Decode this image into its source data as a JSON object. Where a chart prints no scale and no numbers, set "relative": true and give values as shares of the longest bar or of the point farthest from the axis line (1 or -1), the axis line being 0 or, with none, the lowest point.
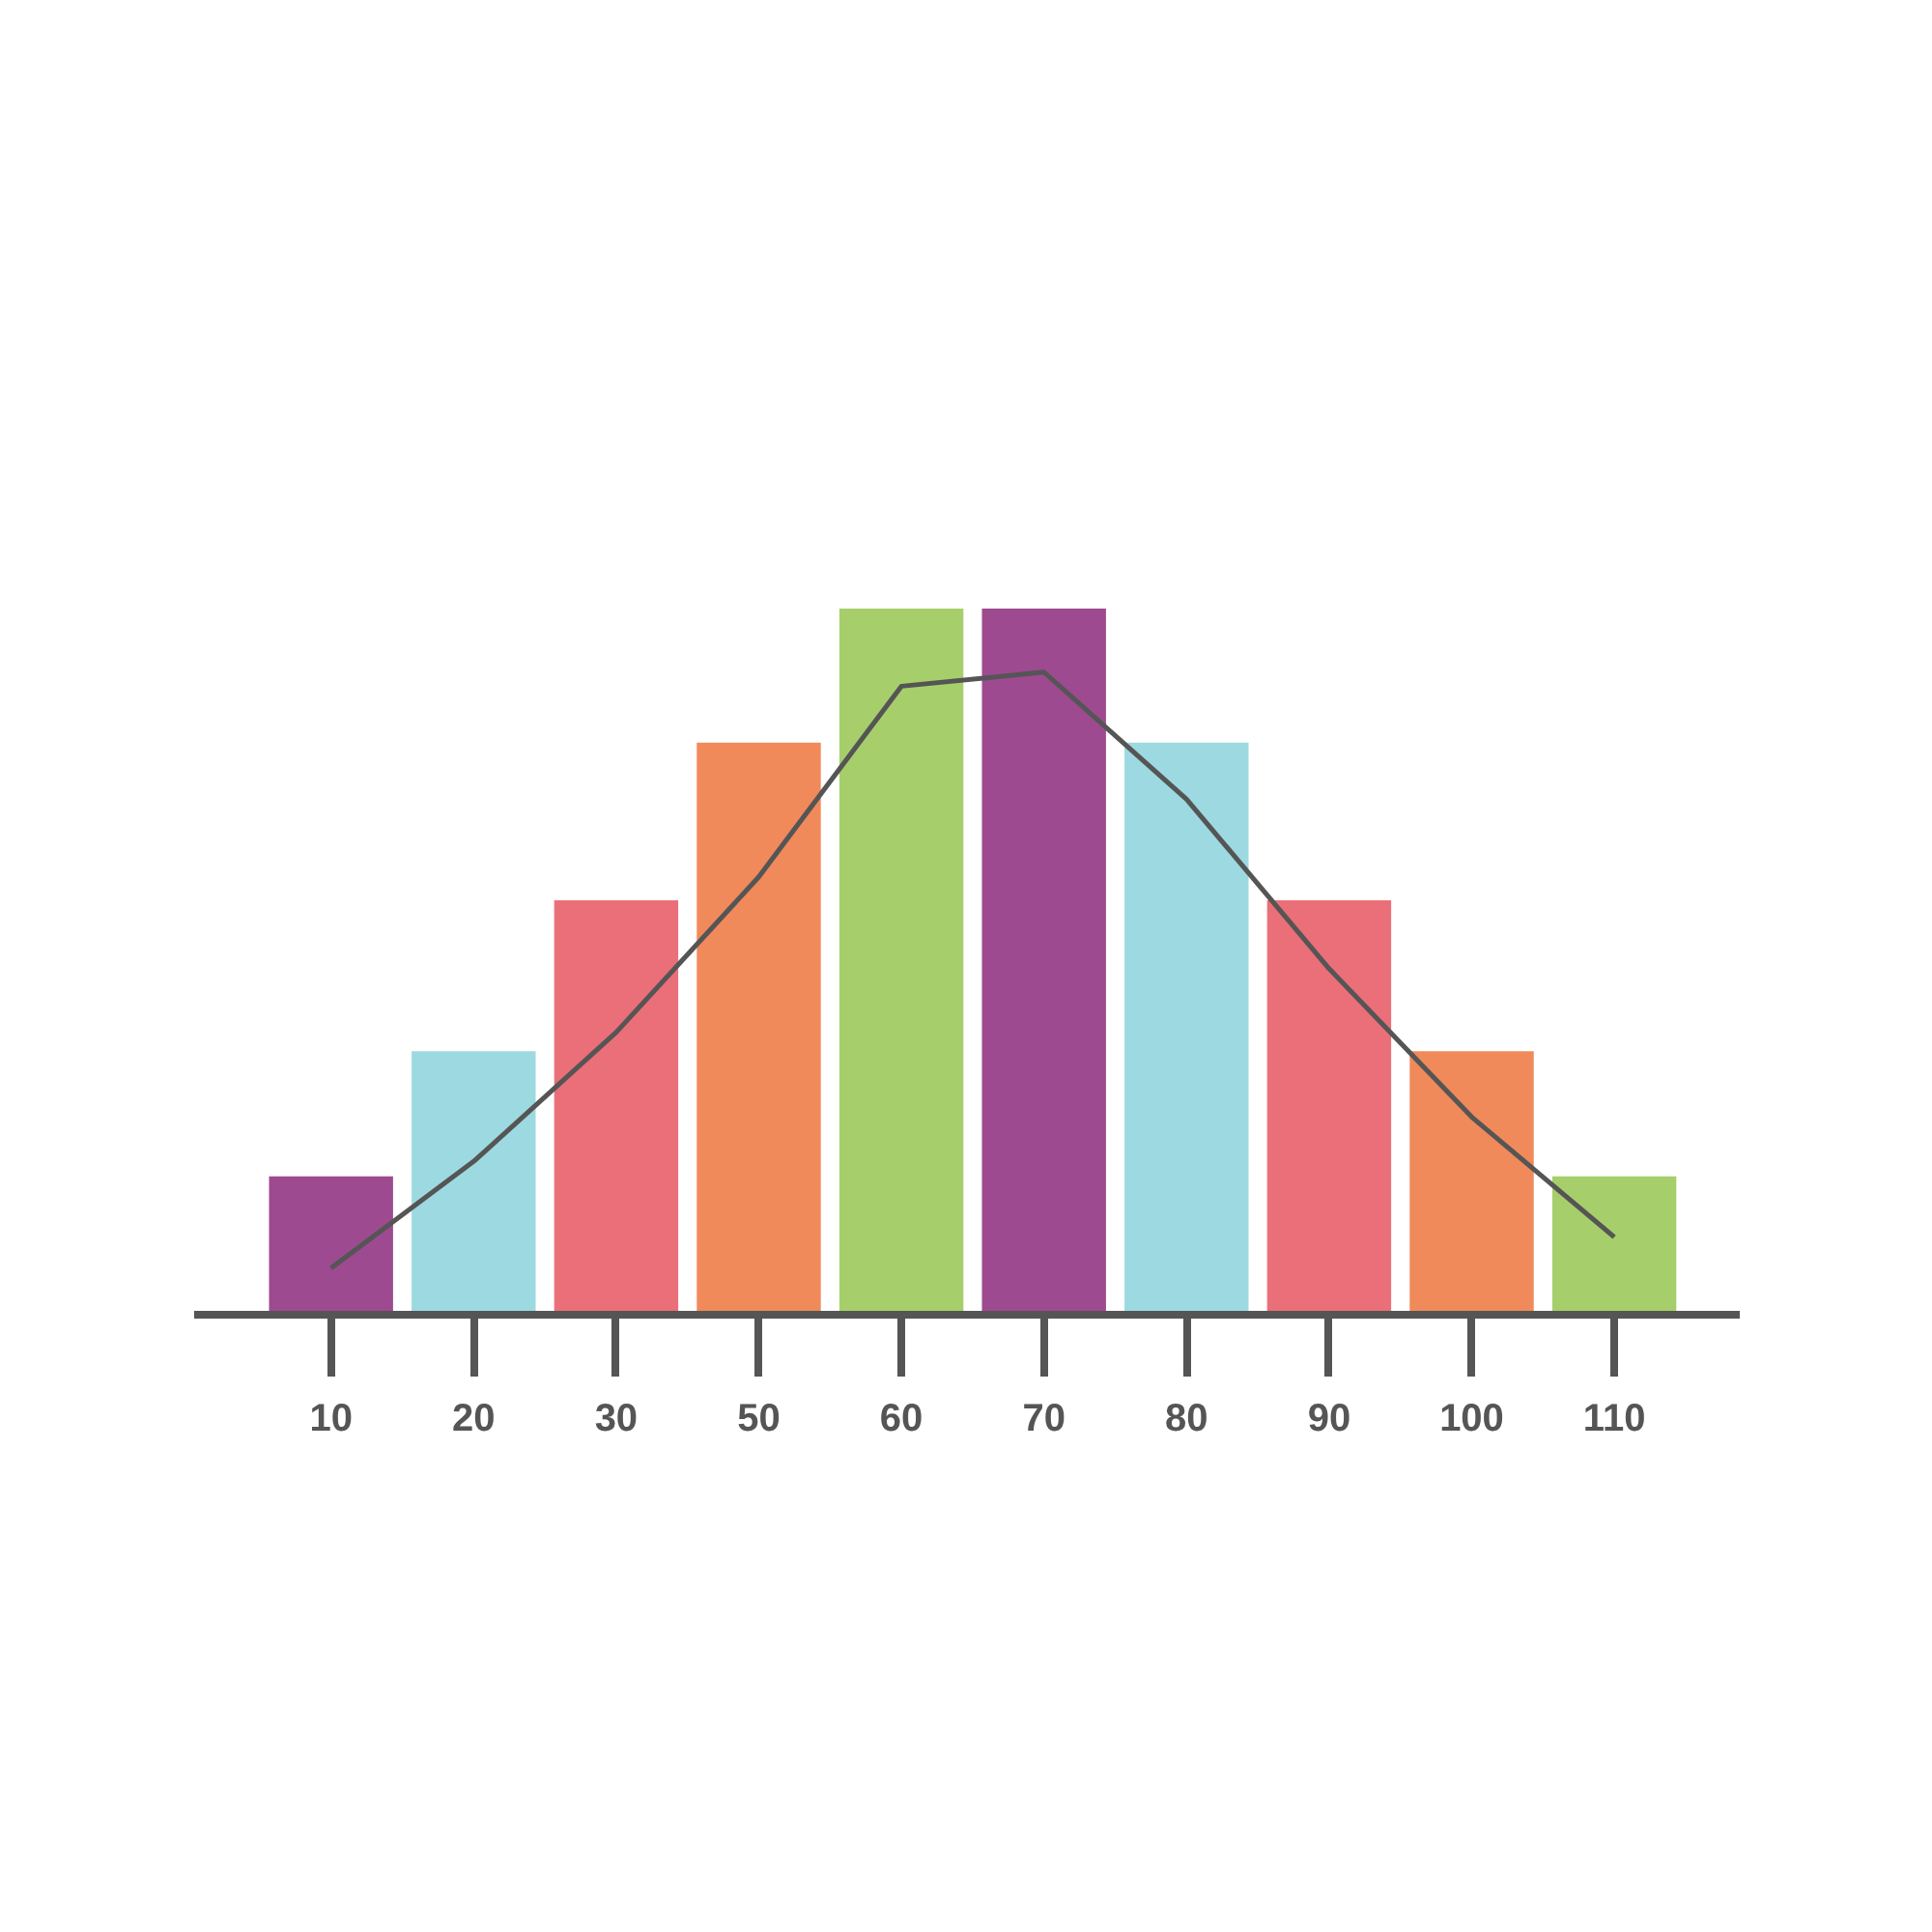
{
  "chart_data": {
    "type": "bar",
    "relative": true,
    "categories": [
      "10",
      "20",
      "30",
      "50",
      "60",
      "70",
      "80",
      "90",
      "100",
      "110"
    ],
    "series": [
      {
        "colors": [
          "#9e4a90",
          "#9dd9e0",
          "#eb6f78",
          "#f08a5b",
          "#a6cf6b",
          "#9e4a90",
          "#9dd9e0",
          "#eb6f78",
          "#f08a5b",
          "#a6cf6b"
        ],
        "values": [
          0.196,
          0.373,
          0.587,
          0.81,
          1,
          1,
          0.81,
          0.587,
          0.373,
          0.196
        ]
      },
      {
        "type": "line",
        "color": "#555555",
        "values": [
          0.066,
          0.217,
          0.4,
          0.62,
          0.89,
          0.91,
          0.73,
          0.49,
          0.28,
          0.11
        ]
      }
    ],
    "grid": false,
    "marker": "none",
    "line_style": "solid"
  }
}
